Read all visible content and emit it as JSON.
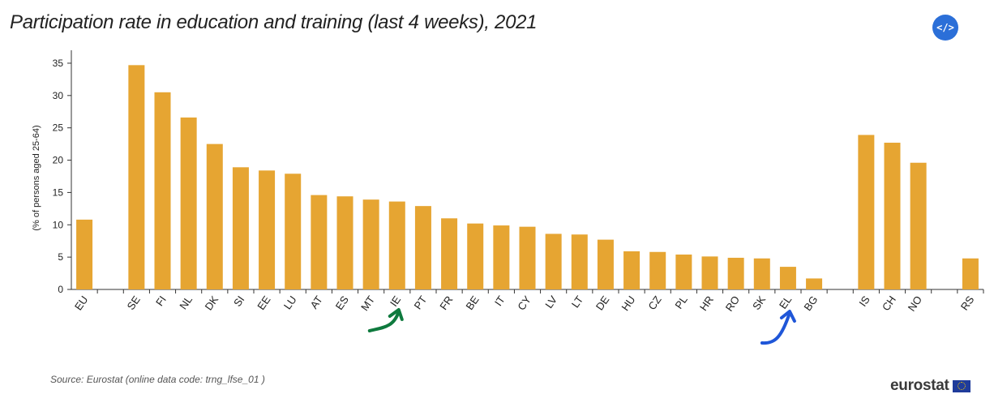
{
  "header": {
    "title": "Participation rate in education and training (last 4 weeks), 2021",
    "embed_label": "</>"
  },
  "footer": {
    "source": "Source: Eurostat (online data code: trng_lfse_01 )",
    "logo_text": "eurostat"
  },
  "colors": {
    "bar": "#e6a532",
    "axis": "#333333",
    "text": "#222222",
    "green_arrow": "#0f7a3e",
    "blue_arrow": "#1f56d8"
  },
  "chart_data": {
    "type": "bar",
    "title": "Participation rate in education and training (last 4 weeks), 2021",
    "xlabel": "",
    "ylabel": "(% of persons aged 25-64)",
    "ylim": [
      0,
      37
    ],
    "yticks": [
      0,
      5,
      10,
      15,
      20,
      25,
      30,
      35
    ],
    "grid": false,
    "categories": [
      "EU",
      "",
      "SE",
      "FI",
      "NL",
      "DK",
      "SI",
      "EE",
      "LU",
      "AT",
      "ES",
      "MT",
      "IE",
      "PT",
      "FR",
      "BE",
      "IT",
      "CY",
      "LV",
      "LT",
      "DE",
      "HU",
      "CZ",
      "PL",
      "HR",
      "RO",
      "SK",
      "EL",
      "BG",
      "",
      "IS",
      "CH",
      "NO",
      "",
      "RS"
    ],
    "values": [
      10.8,
      null,
      34.7,
      30.5,
      26.6,
      22.5,
      18.9,
      18.4,
      17.9,
      14.6,
      14.4,
      13.9,
      13.6,
      12.9,
      11.0,
      10.2,
      9.9,
      9.7,
      8.6,
      8.5,
      7.7,
      5.9,
      5.8,
      5.4,
      5.1,
      4.9,
      4.8,
      3.5,
      1.7,
      null,
      23.9,
      22.7,
      19.6,
      null,
      4.8
    ],
    "annotations": [
      {
        "type": "hand-drawn-arrow",
        "color": "green",
        "target": "IE"
      },
      {
        "type": "hand-drawn-arrow",
        "color": "blue",
        "target": "EL"
      }
    ]
  }
}
